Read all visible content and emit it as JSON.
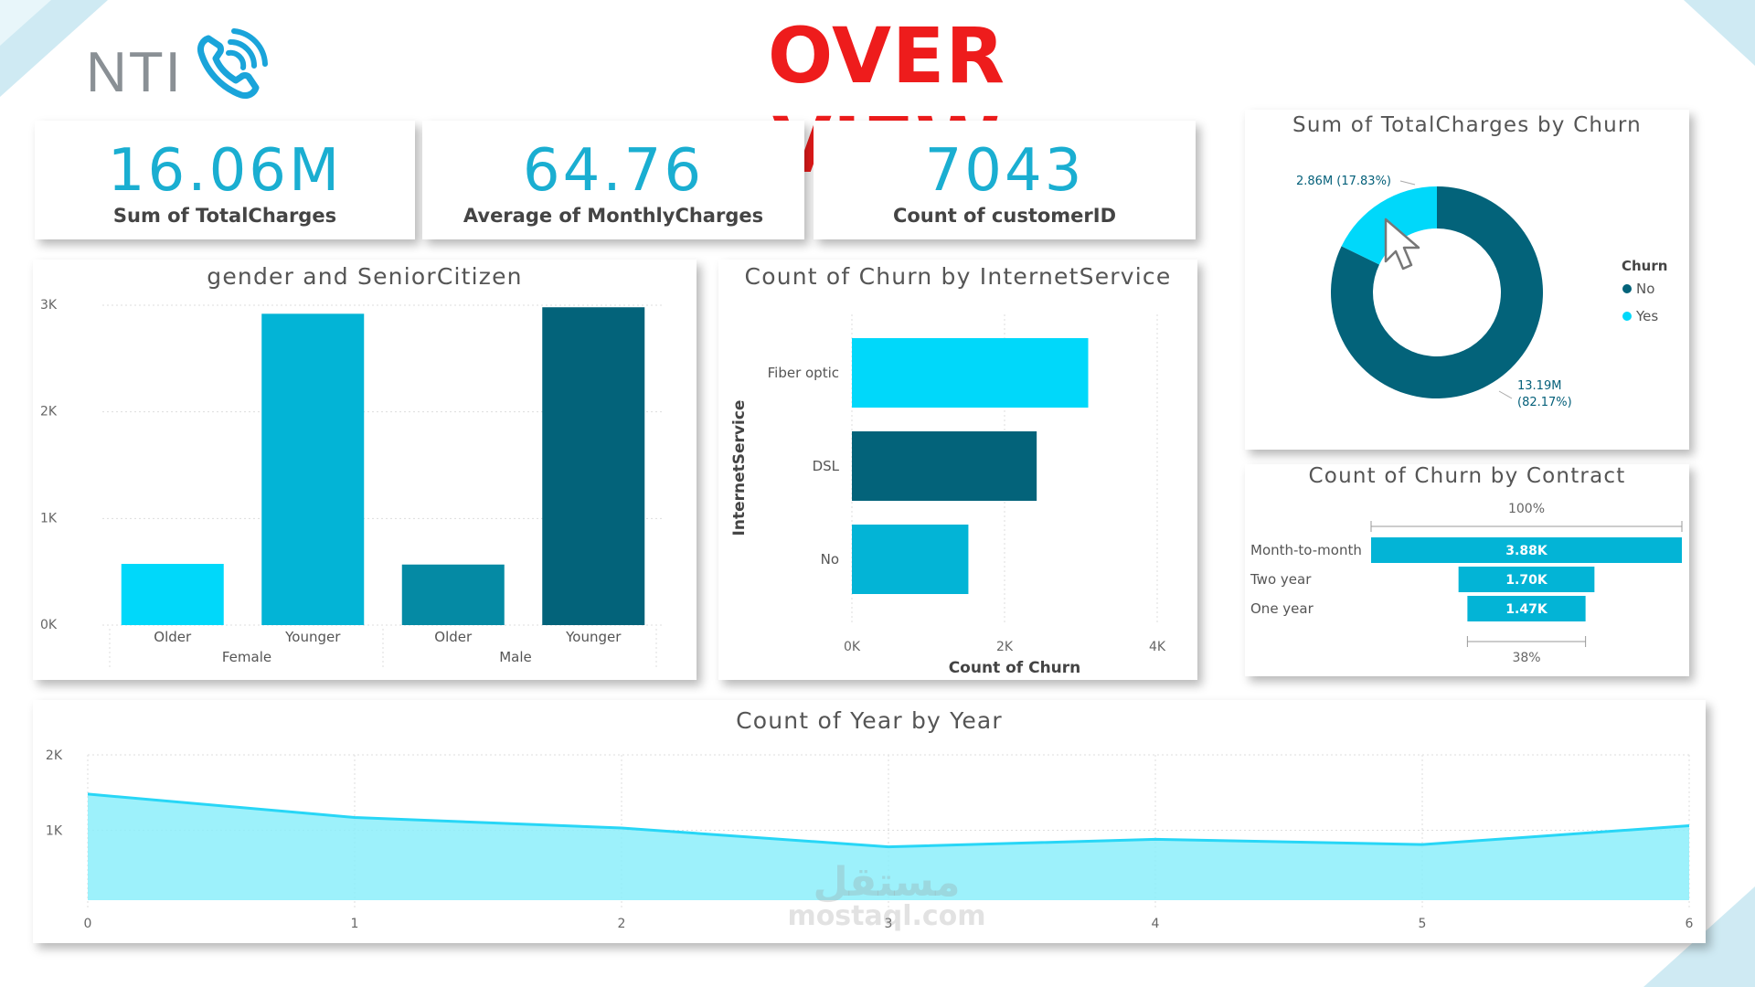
{
  "header": {
    "logo_text": "NTI",
    "title": "OVER VIEW"
  },
  "kpis": [
    {
      "value": "16.06M",
      "label": "Sum of TotalCharges"
    },
    {
      "value": "64.76",
      "label": "Average of MonthlyCharges"
    },
    {
      "value": "7043",
      "label": "Count of customerID"
    }
  ],
  "colors": {
    "accent": "#1aaed1",
    "title_red": "#ee1c1c",
    "cyan_light": "#00d8fa",
    "cyan_mid": "#03b4d6",
    "teal_mid": "#058aa4",
    "teal_dark": "#03637a",
    "area_fill": "#8ceefa",
    "area_line": "#28d6f6"
  },
  "chart_data": [
    {
      "id": "gender",
      "type": "bar",
      "title": "gender and SeniorCitizen",
      "categories": [
        "Older",
        "Younger",
        "Older",
        "Younger"
      ],
      "groups": [
        "Female",
        "Male"
      ],
      "values": [
        574,
        2920,
        568,
        2981
      ],
      "colors": [
        "#00d8fa",
        "#03b4d6",
        "#058aa4",
        "#03637a"
      ],
      "ylim": [
        0,
        3000
      ],
      "yticks": [
        0,
        1000,
        2000,
        3000
      ],
      "ytick_labels": [
        "0K",
        "1K",
        "2K",
        "3K"
      ]
    },
    {
      "id": "internet",
      "type": "bar",
      "orientation": "horizontal",
      "title": "Count of Churn by InternetService",
      "categories": [
        "Fiber optic",
        "DSL",
        "No"
      ],
      "values": [
        3096,
        2421,
        1526
      ],
      "colors": [
        "#00d8fa",
        "#03637a",
        "#03b4d6"
      ],
      "xlim": [
        0,
        4000
      ],
      "xticks": [
        0,
        2000,
        4000
      ],
      "xtick_labels": [
        "0K",
        "2K",
        "4K"
      ],
      "xlabel": "Count of Churn",
      "ylabel": "InternetService"
    },
    {
      "id": "donut",
      "type": "pie",
      "title": "Sum of TotalCharges by Churn",
      "legend_title": "Churn",
      "slices": [
        {
          "label": "No",
          "value": 13.19,
          "percent": 82.17,
          "display": "13.19M",
          "pct_display": "(82.17%)",
          "color": "#03637a"
        },
        {
          "label": "Yes",
          "value": 2.86,
          "percent": 17.83,
          "display": "2.86M (17.83%)",
          "color": "#00d8fa"
        }
      ]
    },
    {
      "id": "funnel",
      "type": "bar",
      "title": "Count of Churn by Contract",
      "categories": [
        "Month-to-month",
        "Two year",
        "One year"
      ],
      "values": [
        3875,
        1695,
        1473
      ],
      "value_labels": [
        "3.88K",
        "1.70K",
        "1.47K"
      ],
      "top_pct": "100%",
      "bottom_pct": "38%",
      "color": "#03b4d6"
    },
    {
      "id": "year",
      "type": "area",
      "title": "Count of Year by Year",
      "x": [
        0,
        1,
        2,
        3,
        4,
        5,
        6
      ],
      "values": [
        1480,
        1170,
        1030,
        780,
        880,
        810,
        1060
      ],
      "xlim": [
        0,
        6
      ],
      "ylim": [
        0,
        2000
      ],
      "yticks": [
        1000,
        2000
      ],
      "ytick_labels": [
        "1K",
        "2K"
      ]
    }
  ],
  "watermark": {
    "line1": "مستقل",
    "line2": "mostaql.com"
  }
}
